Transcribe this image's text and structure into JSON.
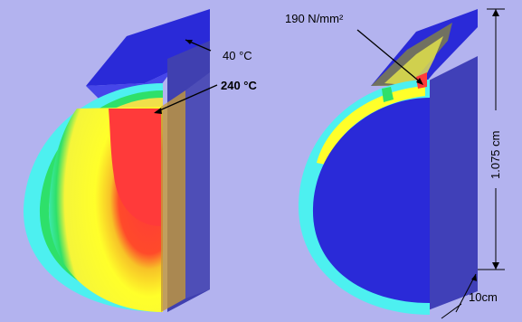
{
  "left_panel": {
    "label_top": "40 °C",
    "label_inner": "240 °C"
  },
  "right_panel": {
    "label_stress": "190 N/mm²",
    "label_height": "1.075 cm",
    "label_width": "10cm"
  },
  "colors": {
    "background": "#b3b3ef",
    "hot": "#ff3a3a",
    "warm": "#ffff2a",
    "cold": "#2a2ad8",
    "cyan": "#4df0f0",
    "green": "#2ee06a"
  }
}
